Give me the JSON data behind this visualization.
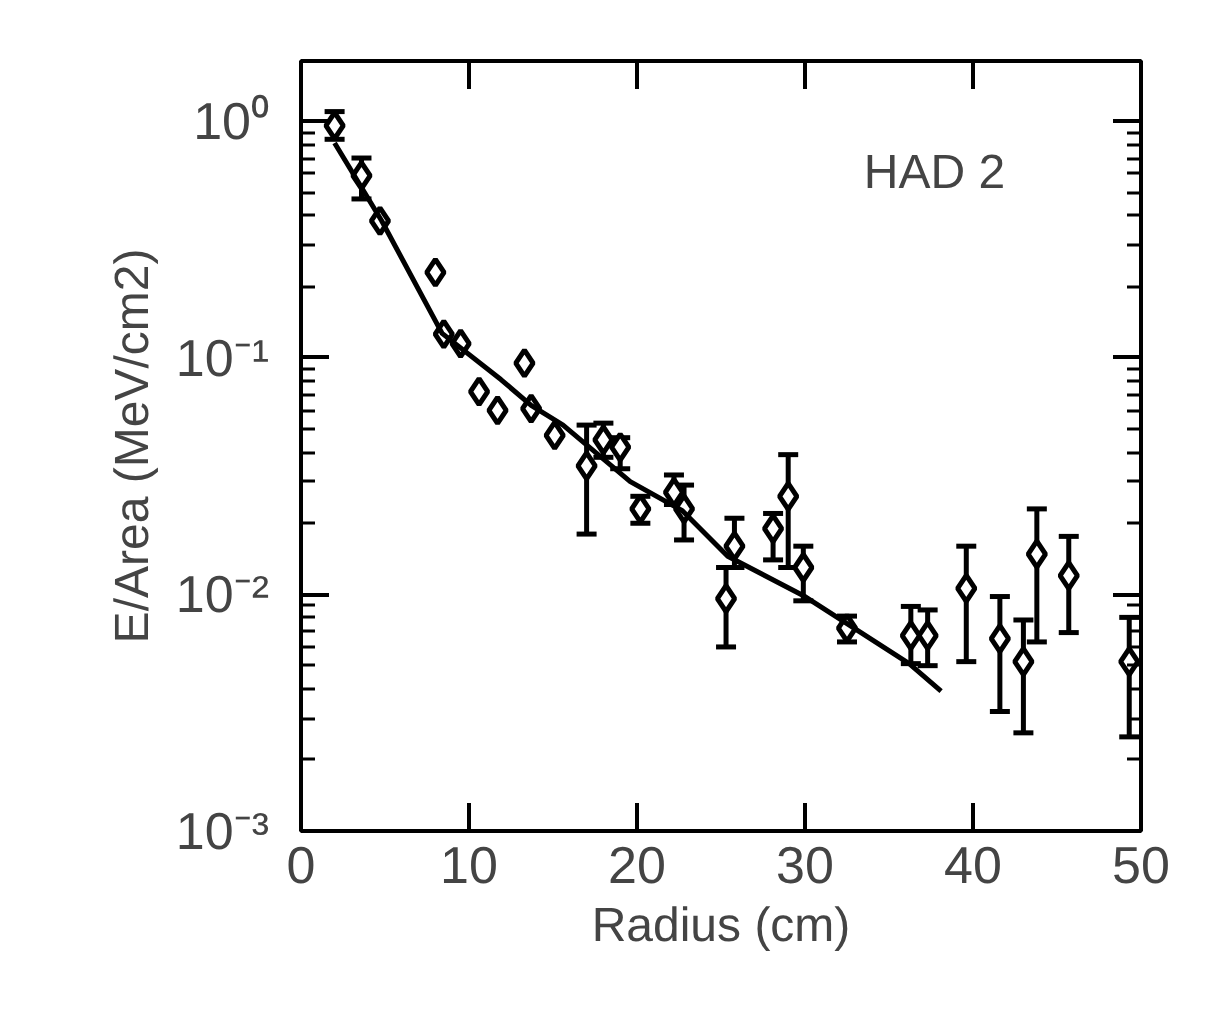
{
  "chart_data": {
    "type": "scatter",
    "xlabel": "Radius (cm)",
    "ylabel": "E/Area (MeV/cm2)",
    "log": "y",
    "xlim": [
      0,
      50
    ],
    "ylim": [
      0.001,
      1.8
    ],
    "xticks": [
      0,
      10,
      20,
      30,
      40,
      50
    ],
    "yticks": [
      {
        "value": 1,
        "label": "10⁰"
      },
      {
        "value": 0.1,
        "label": "10⁻¹"
      },
      {
        "value": 0.01,
        "label": "10⁻²"
      },
      {
        "value": 0.001,
        "label": "10⁻³"
      }
    ],
    "grid": false,
    "annotations": [
      "HAD 2"
    ],
    "series": [
      {
        "marker": "diamond",
        "color": "#000000",
        "x": [
          2.0,
          3.6,
          4.7,
          8.0,
          8.5,
          9.5,
          13.3,
          10.6,
          11.7,
          13.7,
          15.1,
          17.0,
          18.0,
          19.0,
          20.2,
          22.2,
          22.8,
          25.8,
          25.3,
          28.1,
          29.0,
          29.9,
          32.5,
          36.3,
          37.3,
          39.6,
          41.6,
          43.0,
          43.8,
          45.7,
          49.3
        ],
        "values": [
          0.96,
          0.59,
          0.38,
          0.23,
          0.126,
          0.115,
          0.095,
          0.072,
          0.06,
          0.061,
          0.047,
          0.035,
          0.045,
          0.042,
          0.023,
          0.027,
          0.023,
          0.016,
          0.0096,
          0.019,
          0.026,
          0.013,
          0.0072,
          0.0067,
          0.0067,
          0.0106,
          0.0065,
          0.0052,
          0.0148,
          0.012,
          0.0052
        ],
        "errors": [
          [
            0.84,
            1.1
          ],
          [
            0.47,
            0.7
          ],
          null,
          null,
          null,
          null,
          null,
          null,
          null,
          null,
          null,
          [
            0.018,
            0.052
          ],
          [
            0.038,
            0.053
          ],
          [
            0.034,
            0.046
          ],
          [
            0.02,
            0.026
          ],
          [
            0.024,
            0.032
          ],
          [
            0.017,
            0.029
          ],
          [
            0.013,
            0.021
          ],
          [
            0.006,
            0.013
          ],
          [
            0.014,
            0.022
          ],
          [
            0.013,
            0.039
          ],
          [
            0.0094,
            0.016
          ],
          [
            0.0063,
            0.0081
          ],
          [
            0.0051,
            0.0089
          ],
          [
            0.005,
            0.0086
          ],
          [
            0.0052,
            0.016
          ],
          [
            0.0032,
            0.0098
          ],
          [
            0.0026,
            0.0078
          ],
          [
            0.0063,
            0.023
          ],
          [
            0.0069,
            0.0176
          ],
          [
            0.0025,
            0.008
          ]
        ]
      },
      {
        "type": "line",
        "color": "#000000",
        "line_style": "solid",
        "x": [
          2.0,
          4.8,
          8.4,
          11.9,
          13.7,
          15.6,
          19.6,
          22.7,
          25.4,
          30.0,
          32.8,
          36.2,
          38.1
        ],
        "values": [
          0.81,
          0.38,
          0.127,
          0.081,
          0.063,
          0.052,
          0.03,
          0.0226,
          0.0145,
          0.0098,
          0.0073,
          0.0051,
          0.0039
        ]
      }
    ]
  }
}
